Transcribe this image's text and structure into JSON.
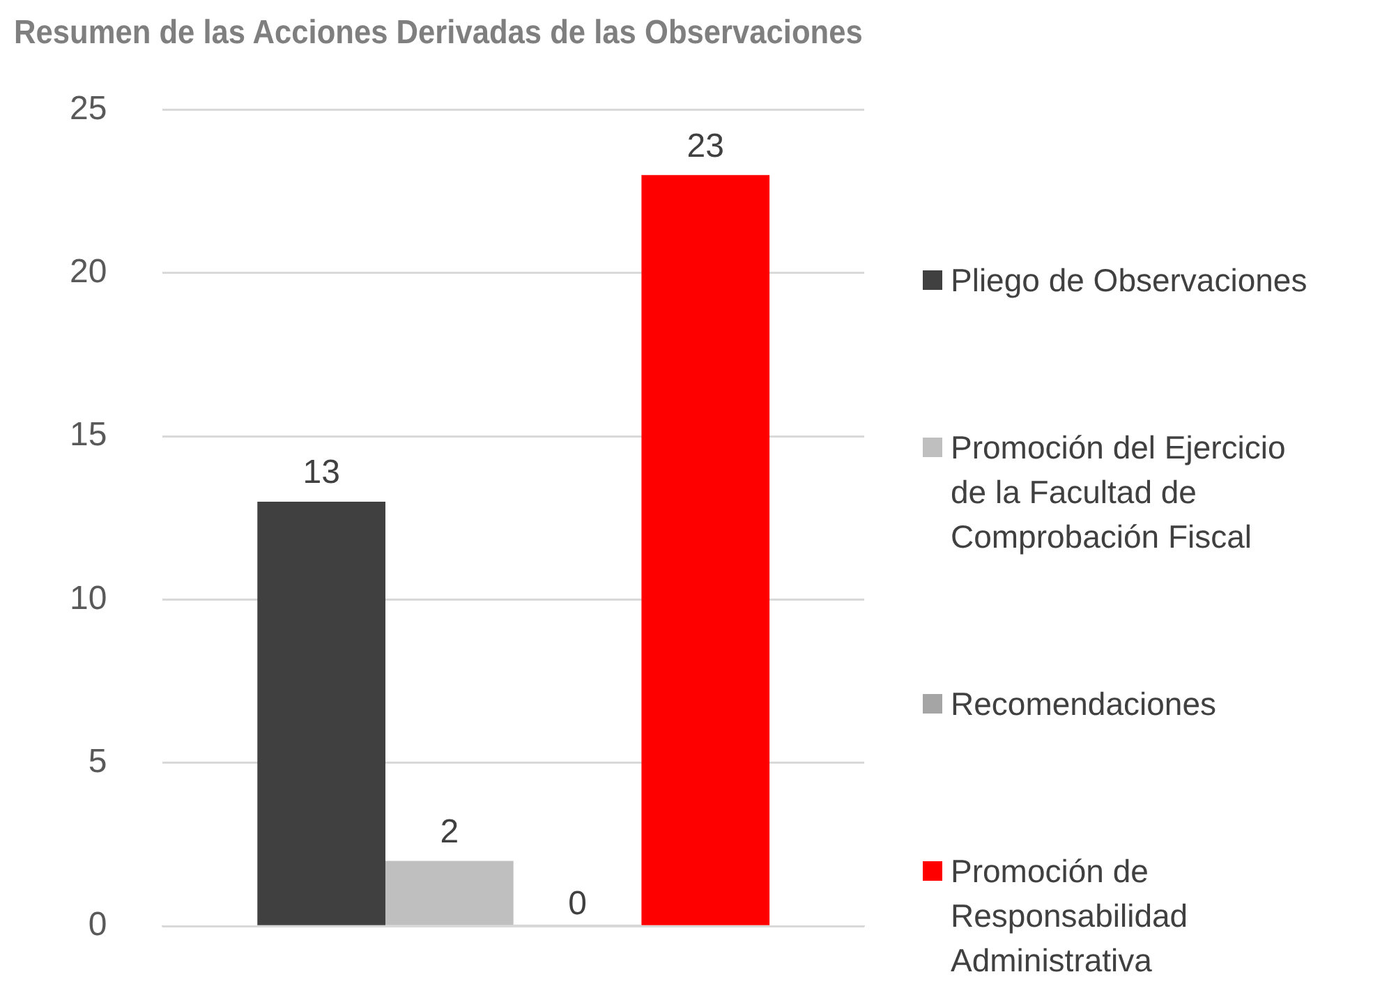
{
  "chart_data": {
    "type": "bar",
    "title": "Resumen de las Acciones Derivadas de las Observaciones",
    "categories": [
      null
    ],
    "series": [
      {
        "name": "Pliego de Observaciones",
        "color": "#404040",
        "values": [
          13
        ]
      },
      {
        "name": "Promoción del Ejercicio de la Facultad de Comprobación Fiscal",
        "color": "#bfbfbf",
        "values": [
          2
        ]
      },
      {
        "name": "Recomendaciones",
        "color": "#a5a5a5",
        "values": [
          0
        ]
      },
      {
        "name": "Promoción de Responsabilidad Administrativa",
        "color": "#ff0000",
        "values": [
          23
        ]
      }
    ],
    "ylim": [
      0,
      25
    ],
    "yticks": [
      0,
      5,
      10,
      15,
      20,
      25
    ],
    "grid": "y",
    "legend": "right",
    "data_labels": true
  }
}
